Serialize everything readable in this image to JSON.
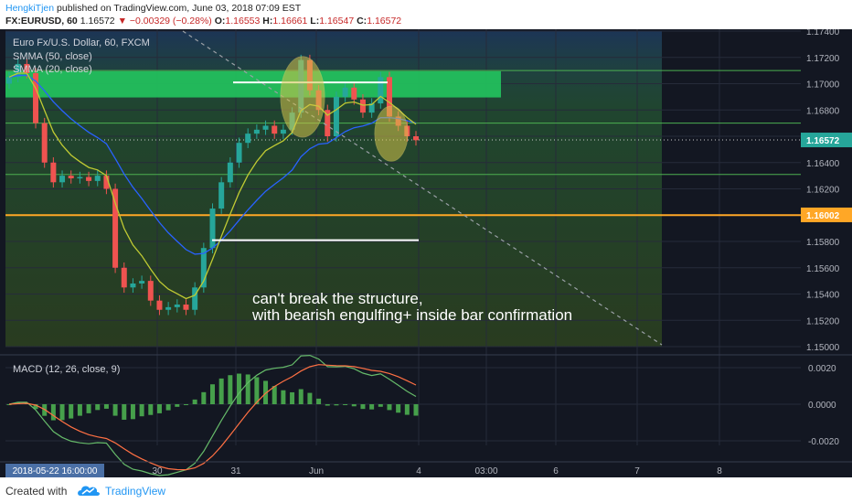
{
  "header": {
    "author": "HengkiTjen",
    "published": "published on TradingView.com, June 03, 2018 07:09 EST",
    "symbol": "FX:EURUSD, 60",
    "last": "1.16572",
    "arrow": "▼",
    "change": "−0.00329 (−0.28%)",
    "o_label": "O:",
    "o_value": "1.16553",
    "h_label": "H:",
    "h_value": "1.16661",
    "l_label": "L:",
    "l_value": "1.16547",
    "c_label": "C:",
    "c_value": "1.16572"
  },
  "legend": {
    "title": "Euro Fx/U.S. Dollar, 60, FXCM",
    "smma50": "SMMA (50, close)",
    "smma20": "SMMA (20, close)"
  },
  "annotation": {
    "line1": "can't break the structure,",
    "line2": "with bearish engulfing+ inside bar confirmation"
  },
  "macd_legend": "MACD (12, 26, close, 9)",
  "footer": {
    "created": "Created with",
    "brand": "TradingView"
  },
  "colors": {
    "background": "#131722",
    "up": "#26a69a",
    "down": "#ef5350",
    "smma50": "#2962ff",
    "smma20": "#c0ca33",
    "resistance_zone": "#22c55e",
    "support_line": "#ffa726",
    "macd": "#66bb6a",
    "signal": "#ff7043",
    "hist": "#4caf50"
  },
  "chart_data": [
    {
      "type": "candlestick",
      "symbol": "EURUSD",
      "timeframe": "60",
      "ylim": [
        1.15,
        1.174
      ],
      "y_ticks": [
        "1.17400",
        "1.17200",
        "1.17000",
        "1.16800",
        "1.16600",
        "1.16400",
        "1.16200",
        "1.16000",
        "1.15800",
        "1.15600",
        "1.15400",
        "1.15200",
        "1.15000"
      ],
      "x_ticks": [
        "30",
        "31",
        "Jun",
        "4",
        "03:00",
        "6",
        "7",
        "8"
      ],
      "crosshair_time": "2018-05-22 16:00:00",
      "price_labels": [
        {
          "value": "1.16572",
          "role": "last price"
        },
        {
          "value": "1.16002",
          "role": "support line"
        }
      ],
      "horizontal_levels": [
        1.171,
        1.167,
        1.1631,
        1.16
      ],
      "resistance_zone": [
        1.1693,
        1.1706
      ],
      "closes": [
        1.1705,
        1.1715,
        1.1708,
        1.167,
        1.164,
        1.1625,
        1.163,
        1.1628,
        1.1629,
        1.1626,
        1.163,
        1.162,
        1.156,
        1.1545,
        1.1548,
        1.155,
        1.1535,
        1.1528,
        1.153,
        1.1532,
        1.1528,
        1.1545,
        1.1575,
        1.1605,
        1.1625,
        1.164,
        1.1655,
        1.1662,
        1.1665,
        1.1668,
        1.1662,
        1.1665,
        1.1678,
        1.1718,
        1.1695,
        1.168,
        1.166,
        1.169,
        1.1697,
        1.1688,
        1.1678,
        1.1685,
        1.1705,
        1.1675,
        1.1668,
        1.166,
        1.1657
      ]
    },
    {
      "type": "macd",
      "params": "12, 26, close, 9",
      "ylim": [
        -0.003,
        0.0026
      ],
      "y_ticks": [
        "0.0020",
        "0.0000",
        "-0.0020"
      ]
    }
  ]
}
